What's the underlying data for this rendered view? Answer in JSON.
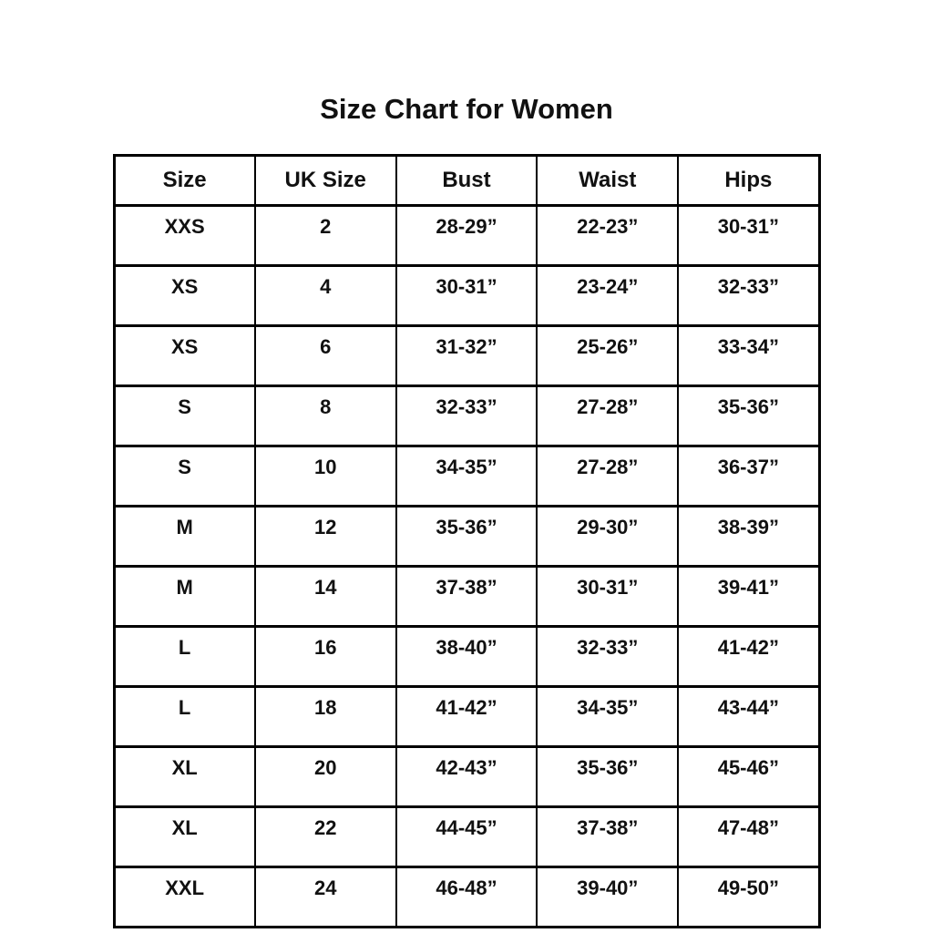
{
  "chart_data": {
    "type": "table",
    "title": "Size Chart for Women",
    "columns": [
      "Size",
      "UK Size",
      "Bust",
      "Waist",
      "Hips"
    ],
    "rows": [
      [
        "XXS",
        "2",
        "28-29”",
        "22-23”",
        "30-31”"
      ],
      [
        "XS",
        "4",
        "30-31”",
        "23-24”",
        "32-33”"
      ],
      [
        "XS",
        "6",
        "31-32”",
        "25-26”",
        "33-34”"
      ],
      [
        "S",
        "8",
        "32-33”",
        "27-28”",
        "35-36”"
      ],
      [
        "S",
        "10",
        "34-35”",
        "27-28”",
        "36-37”"
      ],
      [
        "M",
        "12",
        "35-36”",
        "29-30”",
        "38-39”"
      ],
      [
        "M",
        "14",
        "37-38”",
        "30-31”",
        "39-41”"
      ],
      [
        "L",
        "16",
        "38-40”",
        "32-33”",
        "41-42”"
      ],
      [
        "L",
        "18",
        "41-42”",
        "34-35”",
        "43-44”"
      ],
      [
        "XL",
        "20",
        "42-43”",
        "35-36”",
        "45-46”"
      ],
      [
        "XL",
        "22",
        "44-45”",
        "37-38”",
        "47-48”"
      ],
      [
        "XXL",
        "24",
        "46-48”",
        "39-40”",
        "49-50”"
      ]
    ],
    "text_color": "#111111",
    "border_color": "#000000",
    "background_color": "#ffffff",
    "layout": {
      "grid": true,
      "legend": "none"
    }
  }
}
